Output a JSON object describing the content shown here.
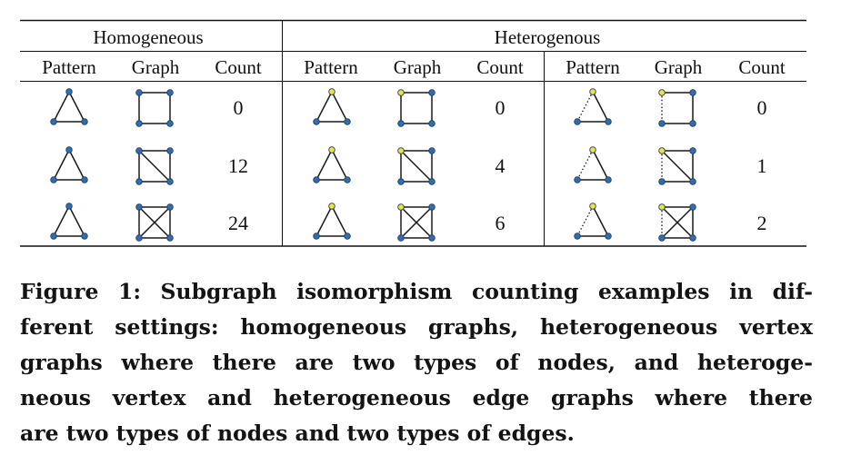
{
  "table": {
    "group_headers": [
      "Homogeneous",
      "Heterogenous"
    ],
    "column_headers": [
      "Pattern",
      "Graph",
      "Count",
      "Pattern",
      "Graph",
      "Count",
      "Pattern",
      "Graph",
      "Count"
    ],
    "rows": [
      {
        "pattern_icon": "triangle-pattern-icon",
        "graph_icon": "square-graph-icon",
        "counts": [
          "0",
          "0",
          "0"
        ]
      },
      {
        "pattern_icon": "triangle-pattern-icon",
        "graph_icon": "square-one-diagonal-graph-icon",
        "counts": [
          "12",
          "4",
          "1"
        ]
      },
      {
        "pattern_icon": "triangle-pattern-icon",
        "graph_icon": "square-two-diagonals-graph-icon",
        "counts": [
          "24",
          "6",
          "2"
        ]
      }
    ]
  },
  "colors": {
    "node_blue": "#2f6eb5",
    "node_yellow": "#f2e33c",
    "edge": "#1a1a1a",
    "rule": "#111111"
  },
  "caption": {
    "lines": [
      "Figure 1: Subgraph isomorphism counting examples in dif-",
      "ferent settings: homogeneous graphs, heterogeneous vertex",
      "graphs where there are two types of nodes, and heteroge-",
      "neous vertex and heterogeneous edge graphs where there",
      "are two types of nodes and two types of edges."
    ]
  }
}
